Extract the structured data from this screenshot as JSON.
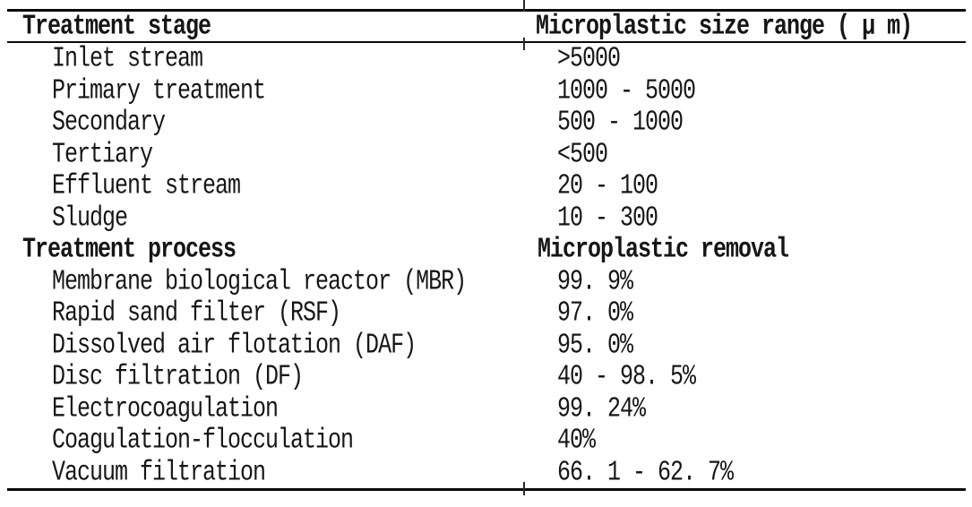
{
  "table": {
    "sections": [
      {
        "header": {
          "col1": "Treatment stage",
          "col2": "Microplastic size range ( μ m)"
        },
        "rows": [
          {
            "col1": "Inlet stream",
            "col2": ">5000"
          },
          {
            "col1": "Primary treatment",
            "col2": "1000 - 5000"
          },
          {
            "col1": "Secondary",
            "col2": "500 - 1000"
          },
          {
            "col1": "Tertiary",
            "col2": "<500"
          },
          {
            "col1": "Effluent stream",
            "col2": "20 - 100"
          },
          {
            "col1": "Sludge",
            "col2": "10 - 300"
          }
        ]
      },
      {
        "header": {
          "col1": "Treatment process",
          "col2": "Microplastic removal"
        },
        "rows": [
          {
            "col1": "Membrane biological reactor (MBR)",
            "col2": "99. 9%"
          },
          {
            "col1": "Rapid sand filter (RSF)",
            "col2": "97. 0%"
          },
          {
            "col1": "Dissolved air flotation (DAF)",
            "col2": "95. 0%"
          },
          {
            "col1": "Disc filtration (DF)",
            "col2": "40 - 98. 5%"
          },
          {
            "col1": "Electrocoagulation",
            "col2": "99. 24%"
          },
          {
            "col1": "Coagulation-flocculation",
            "col2": "40%"
          },
          {
            "col1": "Vacuum filtration",
            "col2": "66. 1 - 62. 7%"
          }
        ]
      }
    ]
  },
  "colors": {
    "text": "#161616",
    "rule": "#0a0a0a",
    "background": "#ffffff"
  }
}
